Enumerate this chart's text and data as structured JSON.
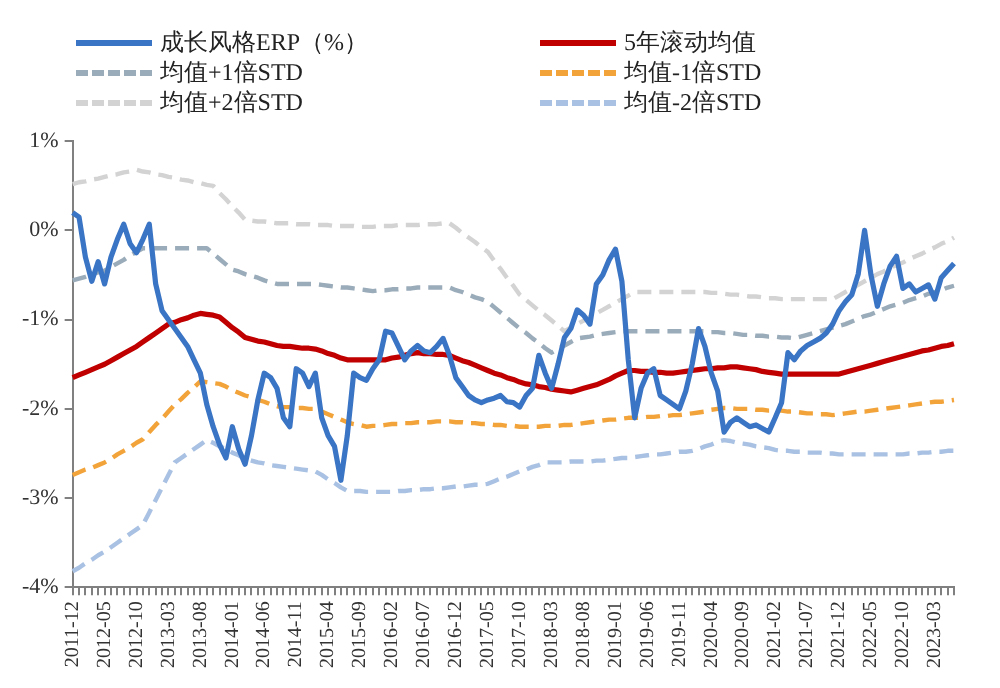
{
  "chart_data": {
    "type": "line",
    "legend": "top",
    "grid": false,
    "marker": "none",
    "categories": [
      "2011-12",
      null,
      null,
      null,
      null,
      "2012-05",
      null,
      null,
      null,
      null,
      "2012-10",
      null,
      null,
      null,
      null,
      "2013-03",
      null,
      null,
      null,
      null,
      "2013-08",
      null,
      null,
      null,
      null,
      "2014-01",
      null,
      null,
      null,
      null,
      "2014-06",
      null,
      null,
      null,
      null,
      "2014-11",
      null,
      null,
      null,
      null,
      "2015-04",
      null,
      null,
      null,
      null,
      "2015-09",
      null,
      null,
      null,
      null,
      "2016-02",
      null,
      null,
      null,
      null,
      "2016-07",
      null,
      null,
      null,
      null,
      "2016-12",
      null,
      null,
      null,
      null,
      "2017-05",
      null,
      null,
      null,
      null,
      "2017-10",
      null,
      null,
      null,
      null,
      "2018-03",
      null,
      null,
      null,
      null,
      "2018-08",
      null,
      null,
      null,
      null,
      "2019-01",
      null,
      null,
      null,
      null,
      "2019-06",
      null,
      null,
      null,
      null,
      "2019-11",
      null,
      null,
      null,
      null,
      "2020-04",
      null,
      null,
      null,
      null,
      "2020-09",
      null,
      null,
      null,
      null,
      "2021-02",
      null,
      null,
      null,
      null,
      "2021-07",
      null,
      null,
      null,
      null,
      "2021-12",
      null,
      null,
      null,
      null,
      "2022-05",
      null,
      null,
      null,
      null,
      "2022-10",
      null,
      null,
      null,
      null,
      "2023-03",
      null,
      null,
      null
    ],
    "ylim": [
      -4,
      1
    ],
    "yticks": [
      {
        "value": -4,
        "label": "-4%"
      },
      {
        "value": -3,
        "label": "-3%"
      },
      {
        "value": -2,
        "label": "-2%"
      },
      {
        "value": -1,
        "label": "-1%"
      },
      {
        "value": 0,
        "label": "0%"
      },
      {
        "value": 1,
        "label": "1%"
      }
    ],
    "series": [
      {
        "name": "成长风格ERP（%）",
        "color": "#3a74c4",
        "line_style": "solid",
        "values": [
          0.2,
          0.15,
          -0.3,
          -0.57,
          -0.35,
          -0.6,
          -0.3,
          -0.1,
          0.07,
          -0.15,
          -0.25,
          -0.1,
          0.07,
          -0.6,
          -0.9,
          -1.0,
          -1.1,
          -1.2,
          -1.3,
          -1.45,
          -1.6,
          -1.95,
          -2.2,
          -2.4,
          -2.55,
          -2.2,
          -2.45,
          -2.62,
          -2.3,
          -1.9,
          -1.6,
          -1.65,
          -1.77,
          -2.1,
          -2.2,
          -1.55,
          -1.6,
          -1.75,
          -1.6,
          -2.1,
          -2.3,
          -2.42,
          -2.8,
          -2.3,
          -1.6,
          -1.65,
          -1.68,
          -1.55,
          -1.45,
          -1.13,
          -1.15,
          -1.3,
          -1.45,
          -1.35,
          -1.29,
          -1.35,
          -1.37,
          -1.3,
          -1.21,
          -1.4,
          -1.65,
          -1.75,
          -1.85,
          -1.9,
          -1.93,
          -1.9,
          -1.88,
          -1.85,
          -1.92,
          -1.93,
          -1.98,
          -1.85,
          -1.77,
          -1.4,
          -1.6,
          -1.77,
          -1.5,
          -1.2,
          -1.1,
          -0.89,
          -0.95,
          -1.05,
          -0.6,
          -0.5,
          -0.33,
          -0.21,
          -0.57,
          -1.45,
          -2.1,
          -1.77,
          -1.6,
          -1.55,
          -1.85,
          -1.9,
          -1.95,
          -2.0,
          -1.8,
          -1.5,
          -1.1,
          -1.3,
          -1.6,
          -1.8,
          -2.26,
          -2.15,
          -2.1,
          -2.15,
          -2.2,
          -2.18,
          -2.22,
          -2.26,
          -2.1,
          -1.93,
          -1.37,
          -1.45,
          -1.35,
          -1.29,
          -1.25,
          -1.21,
          -1.15,
          -1.05,
          -0.9,
          -0.8,
          -0.72,
          -0.49,
          0.0,
          -0.5,
          -0.85,
          -0.6,
          -0.4,
          -0.29,
          -0.65,
          -0.6,
          -0.69,
          -0.65,
          -0.61,
          -0.77,
          -0.53,
          -0.45,
          -0.37
        ]
      },
      {
        "name": "5年滚动均值",
        "color": "#c00000",
        "line_style": "solid",
        "values": [
          -1.65,
          -1.62,
          -1.59,
          -1.56,
          -1.53,
          -1.5,
          -1.46,
          -1.42,
          -1.38,
          -1.34,
          -1.3,
          -1.25,
          -1.2,
          -1.15,
          -1.1,
          -1.05,
          -1.03,
          -1.0,
          -0.98,
          -0.95,
          -0.93,
          -0.94,
          -0.95,
          -0.97,
          -1.03,
          -1.09,
          -1.14,
          -1.2,
          -1.22,
          -1.24,
          -1.25,
          -1.27,
          -1.29,
          -1.3,
          -1.3,
          -1.31,
          -1.32,
          -1.32,
          -1.33,
          -1.35,
          -1.38,
          -1.4,
          -1.43,
          -1.45,
          -1.45,
          -1.45,
          -1.45,
          -1.45,
          -1.45,
          -1.45,
          -1.43,
          -1.42,
          -1.4,
          -1.38,
          -1.37,
          -1.38,
          -1.38,
          -1.39,
          -1.39,
          -1.4,
          -1.43,
          -1.46,
          -1.48,
          -1.51,
          -1.54,
          -1.57,
          -1.6,
          -1.62,
          -1.65,
          -1.67,
          -1.7,
          -1.72,
          -1.73,
          -1.75,
          -1.76,
          -1.78,
          -1.79,
          -1.8,
          -1.81,
          -1.79,
          -1.77,
          -1.75,
          -1.73,
          -1.7,
          -1.67,
          -1.63,
          -1.6,
          -1.57,
          -1.57,
          -1.58,
          -1.58,
          -1.59,
          -1.59,
          -1.6,
          -1.6,
          -1.59,
          -1.58,
          -1.57,
          -1.56,
          -1.55,
          -1.55,
          -1.54,
          -1.54,
          -1.53,
          -1.53,
          -1.54,
          -1.55,
          -1.56,
          -1.58,
          -1.59,
          -1.6,
          -1.61,
          -1.61,
          -1.61,
          -1.61,
          -1.61,
          -1.61,
          -1.61,
          -1.61,
          -1.61,
          -1.61,
          -1.59,
          -1.57,
          -1.55,
          -1.53,
          -1.51,
          -1.49,
          -1.47,
          -1.45,
          -1.43,
          -1.41,
          -1.39,
          -1.37,
          -1.35,
          -1.34,
          -1.32,
          -1.3,
          -1.29,
          -1.27
        ]
      },
      {
        "name": "均值+1倍STD",
        "color": "#9aabb9",
        "line_style": "dashed",
        "values": [
          -0.56,
          -0.54,
          -0.52,
          -0.49,
          -0.47,
          -0.45,
          -0.41,
          -0.37,
          -0.33,
          -0.28,
          -0.24,
          -0.2,
          -0.2,
          -0.2,
          -0.2,
          -0.2,
          -0.2,
          -0.2,
          -0.2,
          -0.2,
          -0.2,
          -0.2,
          -0.26,
          -0.32,
          -0.38,
          -0.44,
          -0.46,
          -0.49,
          -0.51,
          -0.53,
          -0.56,
          -0.58,
          -0.6,
          -0.6,
          -0.6,
          -0.6,
          -0.6,
          -0.6,
          -0.6,
          -0.61,
          -0.62,
          -0.63,
          -0.64,
          -0.64,
          -0.65,
          -0.66,
          -0.67,
          -0.68,
          -0.67,
          -0.67,
          -0.66,
          -0.66,
          -0.65,
          -0.65,
          -0.64,
          -0.64,
          -0.64,
          -0.64,
          -0.64,
          -0.64,
          -0.67,
          -0.69,
          -0.72,
          -0.75,
          -0.77,
          -0.8,
          -0.86,
          -0.92,
          -0.98,
          -1.04,
          -1.1,
          -1.15,
          -1.21,
          -1.26,
          -1.32,
          -1.37,
          -1.33,
          -1.29,
          -1.25,
          -1.21,
          -1.2,
          -1.19,
          -1.17,
          -1.16,
          -1.15,
          -1.14,
          -1.13,
          -1.13,
          -1.13,
          -1.13,
          -1.13,
          -1.13,
          -1.13,
          -1.13,
          -1.13,
          -1.13,
          -1.13,
          -1.13,
          -1.13,
          -1.13,
          -1.14,
          -1.14,
          -1.15,
          -1.15,
          -1.16,
          -1.17,
          -1.17,
          -1.18,
          -1.18,
          -1.19,
          -1.19,
          -1.2,
          -1.2,
          -1.21,
          -1.19,
          -1.17,
          -1.15,
          -1.13,
          -1.11,
          -1.09,
          -1.07,
          -1.05,
          -1.02,
          -0.99,
          -0.96,
          -0.94,
          -0.91,
          -0.88,
          -0.85,
          -0.83,
          -0.81,
          -0.78,
          -0.76,
          -0.74,
          -0.71,
          -0.69,
          -0.67,
          -0.64,
          -0.62
        ]
      },
      {
        "name": "均值-1倍STD",
        "color": "#f2a43a",
        "line_style": "dashed",
        "values": [
          -2.74,
          -2.71,
          -2.68,
          -2.66,
          -2.63,
          -2.6,
          -2.56,
          -2.51,
          -2.47,
          -2.43,
          -2.38,
          -2.34,
          -2.26,
          -2.18,
          -2.11,
          -2.03,
          -1.95,
          -1.89,
          -1.82,
          -1.76,
          -1.69,
          -1.7,
          -1.71,
          -1.72,
          -1.75,
          -1.79,
          -1.82,
          -1.85,
          -1.87,
          -1.9,
          -1.92,
          -1.95,
          -1.97,
          -1.98,
          -1.98,
          -1.99,
          -1.99,
          -2.0,
          -2.0,
          -2.03,
          -2.06,
          -2.09,
          -2.12,
          -2.15,
          -2.17,
          -2.18,
          -2.2,
          -2.19,
          -2.19,
          -2.18,
          -2.17,
          -2.17,
          -2.16,
          -2.16,
          -2.15,
          -2.15,
          -2.15,
          -2.14,
          -2.14,
          -2.14,
          -2.15,
          -2.15,
          -2.16,
          -2.16,
          -2.17,
          -2.17,
          -2.18,
          -2.18,
          -2.19,
          -2.19,
          -2.2,
          -2.2,
          -2.2,
          -2.2,
          -2.19,
          -2.19,
          -2.19,
          -2.18,
          -2.18,
          -2.17,
          -2.16,
          -2.15,
          -2.14,
          -2.13,
          -2.12,
          -2.12,
          -2.11,
          -2.1,
          -2.1,
          -2.1,
          -2.09,
          -2.09,
          -2.08,
          -2.08,
          -2.07,
          -2.07,
          -2.06,
          -2.05,
          -2.04,
          -2.03,
          -2.01,
          -2.0,
          -1.99,
          -1.99,
          -2.0,
          -2.0,
          -2.0,
          -2.01,
          -2.01,
          -2.02,
          -2.02,
          -2.02,
          -2.03,
          -2.03,
          -2.04,
          -2.05,
          -2.05,
          -2.06,
          -2.06,
          -2.07,
          -2.06,
          -2.05,
          -2.04,
          -2.03,
          -2.03,
          -2.02,
          -2.01,
          -2.0,
          -1.99,
          -1.98,
          -1.97,
          -1.96,
          -1.95,
          -1.94,
          -1.93,
          -1.92,
          -1.92,
          -1.91,
          -1.9
        ]
      },
      {
        "name": "均值+2倍STD",
        "color": "#d3d3d3",
        "line_style": "dashed",
        "values": [
          0.52,
          0.54,
          0.55,
          0.57,
          0.58,
          0.6,
          0.62,
          0.63,
          0.65,
          0.66,
          0.68,
          0.66,
          0.65,
          0.63,
          0.62,
          0.6,
          0.59,
          0.57,
          0.56,
          0.54,
          0.53,
          0.51,
          0.5,
          0.42,
          0.35,
          0.27,
          0.2,
          0.12,
          0.11,
          0.1,
          0.1,
          0.09,
          0.08,
          0.08,
          0.08,
          0.07,
          0.07,
          0.07,
          0.06,
          0.06,
          0.06,
          0.05,
          0.05,
          0.05,
          0.05,
          0.04,
          0.04,
          0.04,
          0.05,
          0.05,
          0.05,
          0.06,
          0.06,
          0.06,
          0.06,
          0.07,
          0.07,
          0.07,
          0.08,
          0.08,
          0.03,
          -0.03,
          -0.08,
          -0.13,
          -0.19,
          -0.24,
          -0.34,
          -0.43,
          -0.53,
          -0.62,
          -0.72,
          -0.78,
          -0.84,
          -0.9,
          -0.95,
          -1.01,
          -1.07,
          -1.13,
          -1.09,
          -1.05,
          -1.01,
          -0.97,
          -0.93,
          -0.89,
          -0.85,
          -0.81,
          -0.77,
          -0.73,
          -0.69,
          -0.69,
          -0.69,
          -0.69,
          -0.69,
          -0.69,
          -0.69,
          -0.69,
          -0.69,
          -0.69,
          -0.69,
          -0.69,
          -0.7,
          -0.7,
          -0.71,
          -0.72,
          -0.72,
          -0.73,
          -0.74,
          -0.74,
          -0.75,
          -0.76,
          -0.76,
          -0.77,
          -0.77,
          -0.77,
          -0.77,
          -0.77,
          -0.77,
          -0.77,
          -0.77,
          -0.77,
          -0.73,
          -0.69,
          -0.65,
          -0.61,
          -0.57,
          -0.53,
          -0.49,
          -0.46,
          -0.42,
          -0.39,
          -0.36,
          -0.32,
          -0.29,
          -0.26,
          -0.22,
          -0.19,
          -0.15,
          -0.12,
          -0.08
        ]
      },
      {
        "name": "均值-2倍STD",
        "color": "#a9c1e2",
        "line_style": "dashed",
        "values": [
          -3.82,
          -3.78,
          -3.73,
          -3.69,
          -3.64,
          -3.6,
          -3.55,
          -3.5,
          -3.45,
          -3.4,
          -3.35,
          -3.3,
          -3.16,
          -3.02,
          -2.88,
          -2.74,
          -2.6,
          -2.55,
          -2.5,
          -2.45,
          -2.4,
          -2.35,
          -2.38,
          -2.42,
          -2.45,
          -2.49,
          -2.52,
          -2.56,
          -2.58,
          -2.6,
          -2.61,
          -2.63,
          -2.64,
          -2.65,
          -2.66,
          -2.67,
          -2.68,
          -2.69,
          -2.7,
          -2.74,
          -2.79,
          -2.83,
          -2.88,
          -2.92,
          -2.92,
          -2.92,
          -2.93,
          -2.93,
          -2.93,
          -2.93,
          -2.93,
          -2.92,
          -2.92,
          -2.91,
          -2.91,
          -2.9,
          -2.9,
          -2.89,
          -2.89,
          -2.88,
          -2.87,
          -2.87,
          -2.86,
          -2.85,
          -2.85,
          -2.84,
          -2.81,
          -2.78,
          -2.76,
          -2.73,
          -2.7,
          -2.68,
          -2.65,
          -2.63,
          -2.6,
          -2.6,
          -2.6,
          -2.6,
          -2.59,
          -2.59,
          -2.59,
          -2.59,
          -2.58,
          -2.58,
          -2.57,
          -2.56,
          -2.55,
          -2.55,
          -2.54,
          -2.53,
          -2.52,
          -2.51,
          -2.51,
          -2.5,
          -2.49,
          -2.48,
          -2.48,
          -2.47,
          -2.45,
          -2.42,
          -2.4,
          -2.37,
          -2.35,
          -2.36,
          -2.38,
          -2.39,
          -2.4,
          -2.42,
          -2.43,
          -2.44,
          -2.46,
          -2.47,
          -2.47,
          -2.48,
          -2.48,
          -2.49,
          -2.49,
          -2.49,
          -2.5,
          -2.5,
          -2.51,
          -2.51,
          -2.51,
          -2.51,
          -2.51,
          -2.51,
          -2.51,
          -2.51,
          -2.51,
          -2.51,
          -2.51,
          -2.5,
          -2.5,
          -2.49,
          -2.49,
          -2.48,
          -2.48,
          -2.47,
          -2.47
        ]
      }
    ]
  }
}
